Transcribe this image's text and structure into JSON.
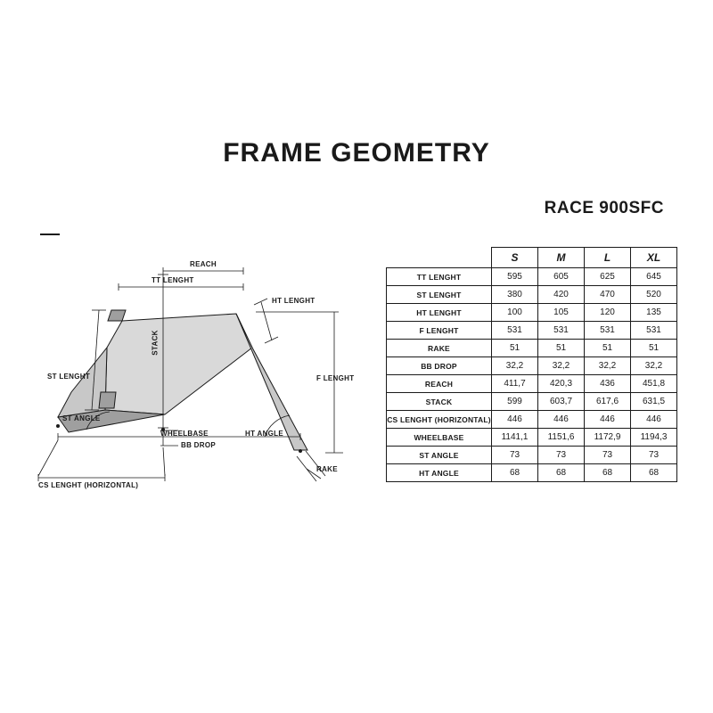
{
  "title": "FRAME GEOMETRY",
  "subtitle": "RACE 900SFC",
  "sizes": [
    "S",
    "M",
    "L",
    "XL"
  ],
  "rows": [
    {
      "label": "TT LENGHT",
      "v": [
        "595",
        "605",
        "625",
        "645"
      ]
    },
    {
      "label": "ST LENGHT",
      "v": [
        "380",
        "420",
        "470",
        "520"
      ]
    },
    {
      "label": "HT LENGHT",
      "v": [
        "100",
        "105",
        "120",
        "135"
      ]
    },
    {
      "label": "F LENGHT",
      "v": [
        "531",
        "531",
        "531",
        "531"
      ]
    },
    {
      "label": "RAKE",
      "v": [
        "51",
        "51",
        "51",
        "51"
      ]
    },
    {
      "label": "BB DROP",
      "v": [
        "32,2",
        "32,2",
        "32,2",
        "32,2"
      ]
    },
    {
      "label": "REACH",
      "v": [
        "411,7",
        "420,3",
        "436",
        "451,8"
      ]
    },
    {
      "label": "STACK",
      "v": [
        "599",
        "603,7",
        "617,6",
        "631,5"
      ]
    },
    {
      "label": "CS LENGHT (HORIZONTAL)",
      "v": [
        "446",
        "446",
        "446",
        "446"
      ]
    },
    {
      "label": "WHEELBASE",
      "v": [
        "1141,1",
        "1151,6",
        "1172,9",
        "1194,3"
      ]
    },
    {
      "label": "ST ANGLE",
      "v": [
        "73",
        "73",
        "73",
        "73"
      ]
    },
    {
      "label": "HT ANGLE",
      "v": [
        "68",
        "68",
        "68",
        "68"
      ]
    }
  ],
  "diagram_labels": {
    "reach": "REACH",
    "tt": "TT LENGHT",
    "ht": "HT LENGHT",
    "stack": "STACK",
    "st": "ST LENGHT",
    "st_angle": "ST ANGLE",
    "wheelbase": "WHEELBASE",
    "bb_drop": "BB DROP",
    "ht_angle": "HT ANGLE",
    "f": "F LENGHT",
    "rake": "RAKE",
    "cs": "CS LENGHT (HORIZONTAL)"
  },
  "style": {
    "background": "#ffffff",
    "text": "#1a1a1a",
    "stroke": "#1a1a1a",
    "fill_light": "#d9d9d9",
    "fill_dark": "#9f9f9f",
    "title_fontsize": 30,
    "subtitle_fontsize": 19,
    "table_fontsize": 10,
    "diagram_label_fontsize": 8
  }
}
